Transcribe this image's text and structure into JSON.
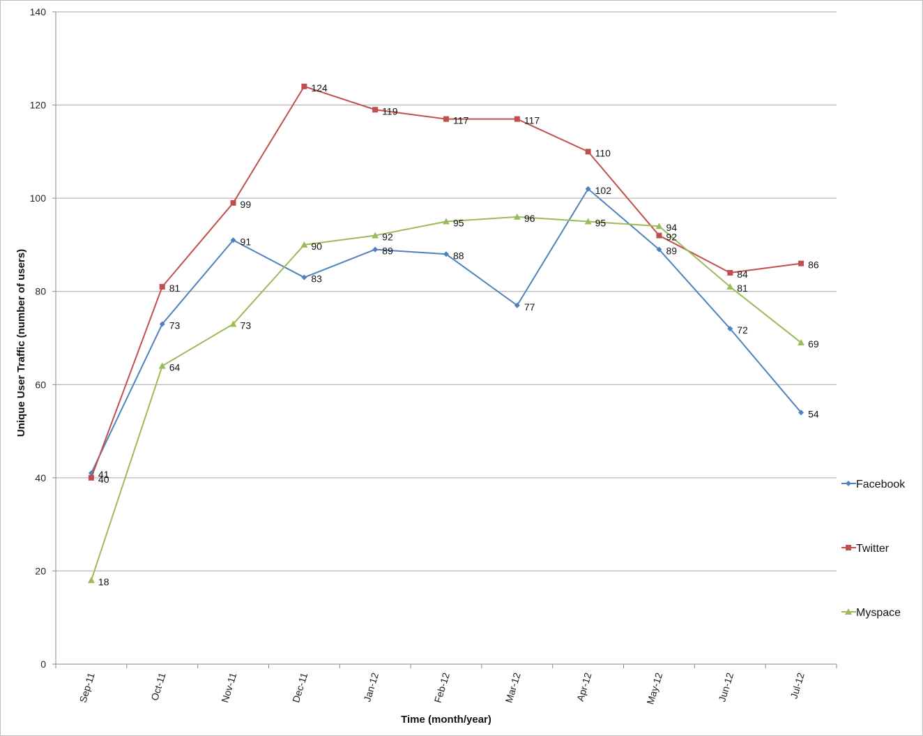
{
  "chart_data": {
    "type": "line",
    "title": "",
    "xlabel": "Time (month/year)",
    "ylabel": "Unique User Traffic (number of users)",
    "categories": [
      "Sep-11",
      "Oct-11",
      "Nov-11",
      "Dec-11",
      "Jan-12",
      "Feb-12",
      "Mar-12",
      "Apr-12",
      "May-12",
      "Jun-12",
      "Jul-12"
    ],
    "ylim": [
      0,
      140
    ],
    "yticks": [
      0,
      20,
      40,
      60,
      80,
      100,
      120,
      140
    ],
    "grid": true,
    "legend_position": "right",
    "data_labels": true,
    "series": [
      {
        "name": "Facebook",
        "color": "#4f81bd",
        "marker": "diamond",
        "values": [
          41,
          73,
          91,
          83,
          89,
          88,
          77,
          102,
          89,
          72,
          54
        ]
      },
      {
        "name": "Twitter",
        "color": "#c0504d",
        "marker": "square",
        "values": [
          40,
          81,
          99,
          124,
          119,
          117,
          117,
          110,
          92,
          84,
          86
        ]
      },
      {
        "name": "Myspace",
        "color": "#9bbb59",
        "marker": "triangle",
        "values": [
          18,
          64,
          73,
          90,
          92,
          95,
          96,
          95,
          94,
          81,
          69
        ]
      }
    ]
  }
}
